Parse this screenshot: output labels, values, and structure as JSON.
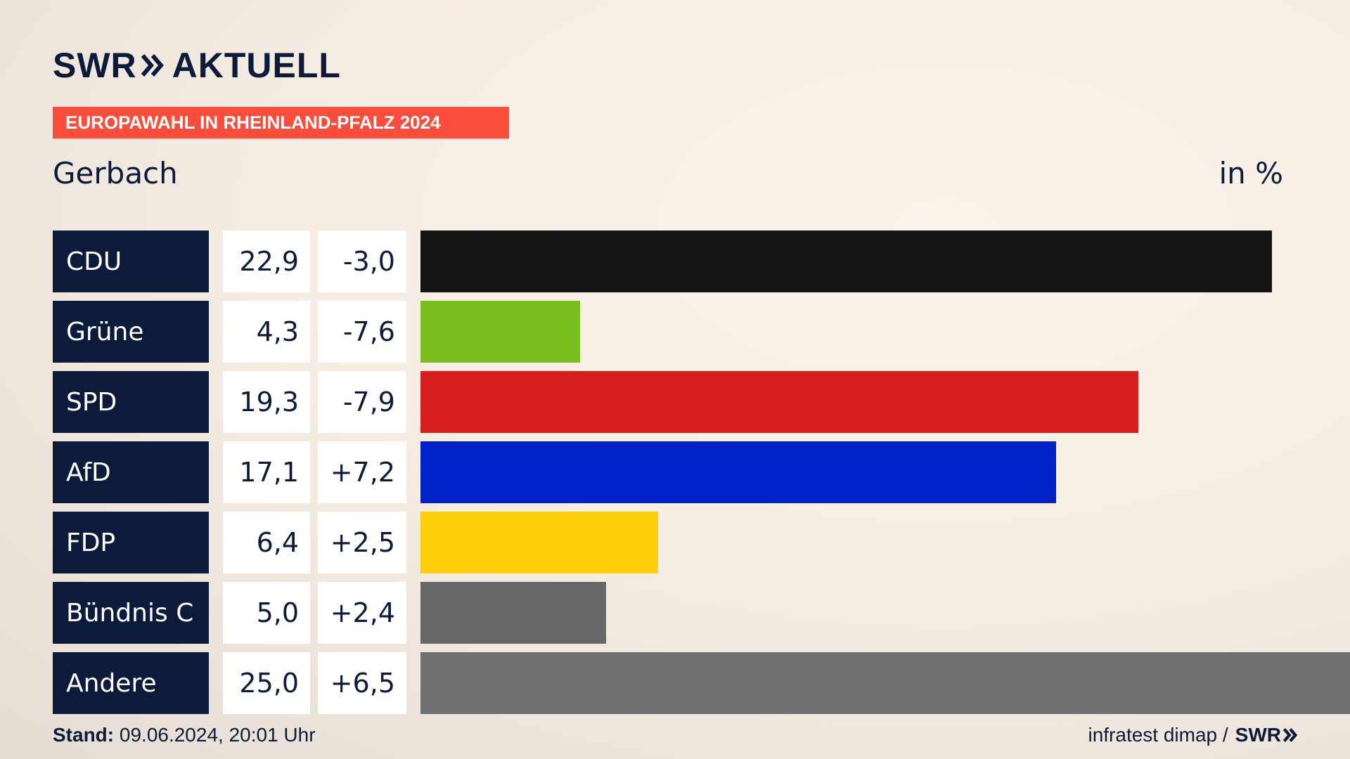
{
  "header": {
    "logo_left": "SWR",
    "logo_right": "AKTUELL",
    "banner": "EUROPAWAHL IN RHEINLAND-PFALZ 2024",
    "region": "Gerbach",
    "unit": "in %"
  },
  "colors": {
    "navy": "#0c1b3a",
    "banner": "#fa4d3c"
  },
  "chart_data": {
    "type": "bar",
    "orientation": "horizontal",
    "title": "EUROPAWAHL IN RHEINLAND-PFALZ 2024",
    "subtitle": "Gerbach",
    "unit": "in %",
    "categories": [
      "CDU",
      "Grüne",
      "SPD",
      "AfD",
      "FDP",
      "Bündnis C",
      "Andere"
    ],
    "values": [
      22.9,
      4.3,
      19.3,
      17.1,
      6.4,
      5.0,
      25.0
    ],
    "value_labels": [
      "22,9",
      "4,3",
      "19,3",
      "17,1",
      "6,4",
      "5,0",
      "25,0"
    ],
    "change_labels": [
      "-3,0",
      "-7,6",
      "-7,9",
      "+7,2",
      "+2,5",
      "+2,4",
      "+6,5"
    ],
    "changes": [
      -3.0,
      -7.6,
      -7.9,
      7.2,
      2.5,
      2.4,
      6.5
    ],
    "colors": [
      "#141414",
      "#78be1e",
      "#d71f1f",
      "#0021c8",
      "#fdcd0a",
      "#676767",
      "#707173"
    ],
    "xlim": [
      0,
      25.0
    ]
  },
  "footer": {
    "stand_label": "Stand:",
    "stand_value": "09.06.2024, 20:01 Uhr",
    "source": "infratest dimap /",
    "source_brand": "SWR"
  }
}
